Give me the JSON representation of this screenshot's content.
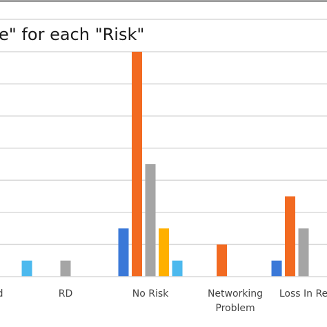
{
  "chart_data": {
    "type": "bar",
    "title": "e\" for each \"Risk\"",
    "xlabel": "",
    "ylabel": "",
    "categories": [
      [
        "d"
      ],
      [
        "RD"
      ],
      [
        "No Risk"
      ],
      [
        "Networking",
        "Problem"
      ],
      [
        "Loss In Re"
      ]
    ],
    "ylim": [
      0,
      7
    ],
    "grid": true,
    "series": [
      {
        "color": "#3a78d8",
        "values": [
          null,
          null,
          1.5,
          null,
          0.5
        ]
      },
      {
        "color": "#f26a21",
        "values": [
          null,
          null,
          7,
          1,
          2.5
        ]
      },
      {
        "color": "#a5a5a5",
        "values": [
          null,
          0.5,
          3.5,
          null,
          1.5
        ]
      },
      {
        "color": "#ffb000",
        "values": [
          null,
          null,
          1.5,
          null,
          null
        ]
      },
      {
        "color": "#4cb9ee",
        "values": [
          0.5,
          null,
          0.5,
          null,
          null
        ]
      }
    ]
  }
}
